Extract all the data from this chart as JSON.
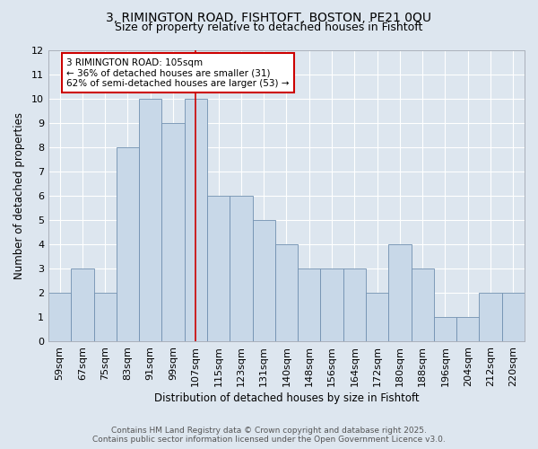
{
  "title_line1": "3, RIMINGTON ROAD, FISHTOFT, BOSTON, PE21 0QU",
  "title_line2": "Size of property relative to detached houses in Fishtoft",
  "categories": [
    "59sqm",
    "67sqm",
    "75sqm",
    "83sqm",
    "91sqm",
    "99sqm",
    "107sqm",
    "115sqm",
    "123sqm",
    "131sqm",
    "140sqm",
    "148sqm",
    "156sqm",
    "164sqm",
    "172sqm",
    "180sqm",
    "188sqm",
    "196sqm",
    "204sqm",
    "212sqm",
    "220sqm"
  ],
  "values": [
    2,
    3,
    2,
    8,
    10,
    9,
    10,
    6,
    6,
    5,
    4,
    3,
    3,
    3,
    2,
    4,
    3,
    1,
    1,
    2,
    2
  ],
  "bar_color": "#c8d8e8",
  "bar_edge_color": "#7090b0",
  "property_line_x": 6,
  "annotation_text": "3 RIMINGTON ROAD: 105sqm\n← 36% of detached houses are smaller (31)\n62% of semi-detached houses are larger (53) →",
  "xlabel": "Distribution of detached houses by size in Fishtoft",
  "ylabel": "Number of detached properties",
  "ylim": [
    0,
    12
  ],
  "yticks": [
    0,
    1,
    2,
    3,
    4,
    5,
    6,
    7,
    8,
    9,
    10,
    11,
    12
  ],
  "footnote": "Contains HM Land Registry data © Crown copyright and database right 2025.\nContains public sector information licensed under the Open Government Licence v3.0.",
  "bg_color": "#dde6ef",
  "plot_bg_color": "#dde6ef",
  "grid_color": "#ffffff",
  "line_color": "#cc0000",
  "title_fontsize": 10,
  "subtitle_fontsize": 9,
  "footnote_fontsize": 6.5,
  "annotation_fontsize": 7.5,
  "xlabel_fontsize": 8.5,
  "ylabel_fontsize": 8.5,
  "tick_fontsize": 8
}
